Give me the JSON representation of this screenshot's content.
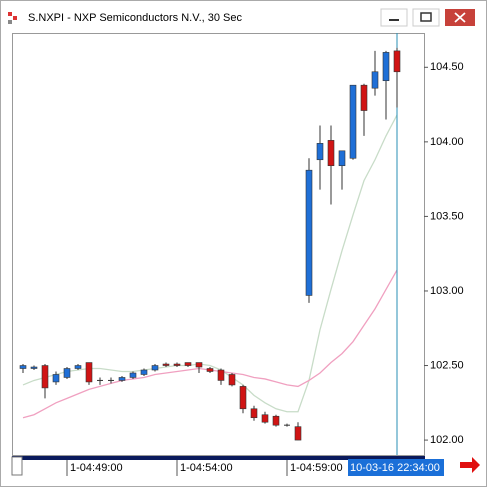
{
  "chart_data": {
    "type": "candlestick",
    "title": "S.NXPI - NXP Semiconductors N.V., 30 Sec",
    "categories": [
      null,
      null,
      null,
      null,
      "1-04:49:00",
      null,
      null,
      null,
      null,
      null,
      null,
      null,
      null,
      null,
      "1-04:54:00",
      null,
      null,
      null,
      null,
      null,
      null,
      null,
      null,
      null,
      "1-04:59:00",
      null,
      null,
      null,
      null,
      null,
      null,
      null,
      null,
      null,
      "10-03-16 22:34:00"
    ],
    "open": [
      102.48,
      102.48,
      102.5,
      102.39,
      102.42,
      102.48,
      102.52,
      102.4,
      102.4,
      102.4,
      102.42,
      102.44,
      102.47,
      102.51,
      102.51,
      102.52,
      102.52,
      102.48,
      102.47,
      102.44,
      102.36,
      102.21,
      102.17,
      102.16,
      102.1,
      102.09,
      102.97,
      103.88,
      104.01,
      103.84,
      103.89,
      104.38,
      104.36,
      104.41,
      104.61
    ],
    "high": [
      102.51,
      102.5,
      102.51,
      102.46,
      102.49,
      102.51,
      102.52,
      102.42,
      102.42,
      102.43,
      102.46,
      102.48,
      102.51,
      102.52,
      102.52,
      102.52,
      102.52,
      102.49,
      102.48,
      102.45,
      102.37,
      102.23,
      102.19,
      102.17,
      102.11,
      102.12,
      103.89,
      104.11,
      104.11,
      103.94,
      104.38,
      104.39,
      104.61,
      104.61,
      104.63
    ],
    "low": [
      102.45,
      102.47,
      102.28,
      102.37,
      102.41,
      102.47,
      102.37,
      102.37,
      102.38,
      102.39,
      102.41,
      102.43,
      102.46,
      102.49,
      102.49,
      102.49,
      102.45,
      102.45,
      102.37,
      102.36,
      102.18,
      102.13,
      102.11,
      102.09,
      102.09,
      102.0,
      102.92,
      103.68,
      103.58,
      103.68,
      103.88,
      104.04,
      104.31,
      104.15,
      104.23
    ],
    "close": [
      102.5,
      102.49,
      102.35,
      102.44,
      102.48,
      102.5,
      102.39,
      102.4,
      102.4,
      102.42,
      102.45,
      102.47,
      102.5,
      102.5,
      102.5,
      102.5,
      102.49,
      102.46,
      102.4,
      102.37,
      102.21,
      102.15,
      102.12,
      102.1,
      102.1,
      102.0,
      103.81,
      103.99,
      103.84,
      103.94,
      104.38,
      104.21,
      104.47,
      104.6,
      104.47
    ],
    "up_color": "#1f6fd6",
    "down_color": "#d01414",
    "overlays": [
      {
        "color": "#c8dcc8",
        "values": [
          102.37,
          102.4,
          102.42,
          102.44,
          102.46,
          102.47,
          102.48,
          102.48,
          102.47,
          102.46,
          102.46,
          102.47,
          102.48,
          102.49,
          102.5,
          102.5,
          102.51,
          102.5,
          102.47,
          102.42,
          102.37,
          102.3,
          102.25,
          102.21,
          102.19,
          102.19,
          102.4,
          102.74,
          103.01,
          103.27,
          103.51,
          103.74,
          103.88,
          104.04,
          104.18
        ]
      },
      {
        "color": "#f0a0c0",
        "values": [
          102.15,
          102.17,
          102.21,
          102.25,
          102.28,
          102.31,
          102.34,
          102.36,
          102.38,
          102.4,
          102.41,
          102.42,
          102.44,
          102.45,
          102.46,
          102.47,
          102.48,
          102.47,
          102.46,
          102.45,
          102.44,
          102.42,
          102.41,
          102.39,
          102.37,
          102.36,
          102.4,
          102.45,
          102.52,
          102.58,
          102.66,
          102.77,
          102.88,
          103.01,
          103.14
        ]
      }
    ],
    "ylim": [
      101.9,
      104.73
    ],
    "yticks": [
      {
        "value": 102,
        "label": "102.00"
      },
      {
        "value": 102.5,
        "label": "102.50"
      },
      {
        "value": 103,
        "label": "103.00"
      },
      {
        "value": 103.5,
        "label": "103.50"
      },
      {
        "value": 104,
        "label": "104.00"
      },
      {
        "value": 104.5,
        "label": "104.50"
      }
    ]
  }
}
